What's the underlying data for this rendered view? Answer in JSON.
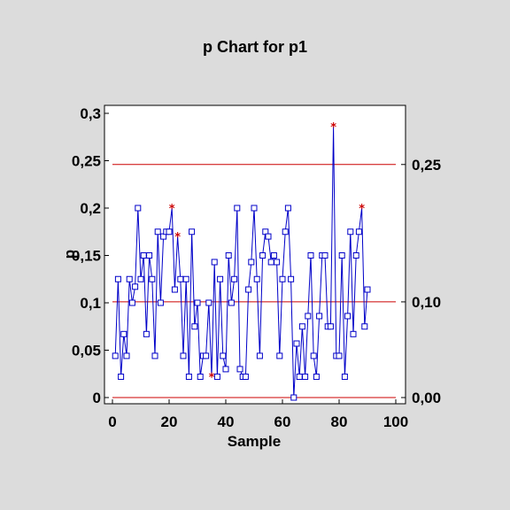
{
  "chart_data": {
    "type": "line",
    "title": "p Chart for p1",
    "xlabel": "Sample",
    "ylabel": "p",
    "xlim": [
      0,
      100
    ],
    "ylim": [
      0,
      0.3
    ],
    "x_ticks": [
      0,
      20,
      40,
      60,
      80,
      100
    ],
    "x_tick_labels": [
      "0",
      "20",
      "40",
      "60",
      "80",
      "100"
    ],
    "y_ticks": [
      0,
      0.05,
      0.1,
      0.15,
      0.2,
      0.25,
      0.3
    ],
    "y_tick_labels": [
      "0",
      "0,05",
      "0,1",
      "0,15",
      "0,2",
      "0,25",
      "0,3"
    ],
    "control_limits": [
      {
        "name": "UCL",
        "value": 0.246,
        "label": "0,25"
      },
      {
        "name": "CTR",
        "value": 0.101,
        "label": "0,10"
      },
      {
        "name": "LCL",
        "value": 0.0,
        "label": "0,00"
      }
    ],
    "colors": {
      "series": "#0000c8",
      "limits": "#cc0000",
      "flag": "#cc0000"
    },
    "series": [
      {
        "x": [
          1,
          2,
          3,
          4,
          5,
          6,
          7,
          8,
          9,
          10,
          11,
          12,
          13,
          14,
          15,
          16,
          17,
          18,
          19,
          20,
          21,
          22,
          23,
          24,
          25,
          26,
          27,
          28,
          29,
          30,
          31,
          32,
          33,
          34,
          35,
          36,
          37,
          38,
          39,
          40,
          41,
          42,
          43,
          44,
          45,
          46,
          47,
          48,
          49,
          50,
          51,
          52,
          53,
          54,
          55,
          56,
          57,
          58,
          59,
          60,
          61,
          62,
          63,
          64,
          65,
          66,
          67,
          68,
          69,
          70,
          71,
          72,
          73,
          74,
          75,
          76,
          77,
          78,
          79,
          80,
          81,
          82,
          83,
          84,
          85,
          86,
          87,
          88,
          89,
          90
        ],
        "values": [
          0.044,
          0.125,
          0.022,
          0.067,
          0.044,
          0.125,
          0.1,
          0.117,
          0.2,
          0.125,
          0.15,
          0.067,
          0.15,
          0.125,
          0.044,
          0.175,
          0.1,
          0.17,
          0.175,
          0.175,
          0.2,
          0.114,
          0.17,
          0.125,
          0.044,
          0.125,
          0.022,
          0.175,
          0.075,
          0.1,
          0.022,
          0.044,
          0.044,
          0.1,
          0.022,
          0.143,
          0.022,
          0.125,
          0.044,
          0.03,
          0.15,
          0.1,
          0.125,
          0.2,
          0.03,
          0.022,
          0.022,
          0.114,
          0.143,
          0.2,
          0.125,
          0.044,
          0.15,
          0.175,
          0.17,
          0.143,
          0.15,
          0.143,
          0.044,
          0.125,
          0.175,
          0.2,
          0.125,
          0.0,
          0.057,
          0.022,
          0.075,
          0.022,
          0.086,
          0.15,
          0.044,
          0.022,
          0.086,
          0.15,
          0.15,
          0.075,
          0.075,
          0.286,
          0.044,
          0.044,
          0.15,
          0.022,
          0.086,
          0.175,
          0.067,
          0.15,
          0.175,
          0.2,
          0.075,
          0.114
        ],
        "flags": [
          21,
          23,
          35,
          78,
          88
        ]
      }
    ]
  }
}
